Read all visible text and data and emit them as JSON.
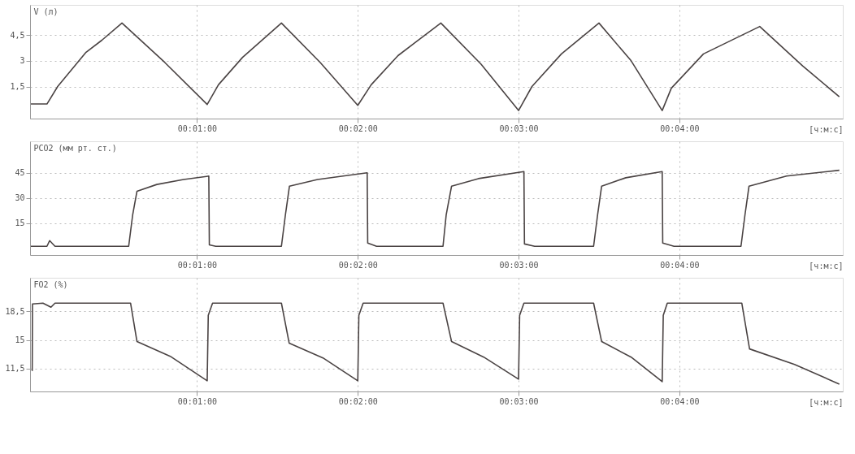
{
  "chart_data": [
    {
      "type": "line",
      "ylabel": "V (л)",
      "xlabel": "[ч:м:с]",
      "color": "#4a4343",
      "grid": true,
      "x": [
        -2,
        4,
        8,
        18.6,
        24.5,
        32,
        48,
        63.8,
        68,
        77,
        91.5,
        106,
        120,
        125,
        135,
        151,
        166,
        180,
        185,
        196,
        210,
        222,
        233.6,
        237,
        249,
        270,
        286,
        299.7
      ],
      "values": [
        0.48,
        0.48,
        1.5,
        3.5,
        4.2,
        5.2,
        2.9,
        0.45,
        1.6,
        3.2,
        5.2,
        2.9,
        0.4,
        1.6,
        3.3,
        5.2,
        2.8,
        0.1,
        1.5,
        3.4,
        5.2,
        3.0,
        0.1,
        1.4,
        3.4,
        5.0,
        2.7,
        0.9
      ],
      "xlim": [
        -2.3,
        301
      ],
      "ylim": [
        -0.37,
        6.26
      ],
      "xticks": [
        {
          "value": 60,
          "label": "00:01:00"
        },
        {
          "value": 120,
          "label": "00:02:00"
        },
        {
          "value": 180,
          "label": "00:03:00"
        },
        {
          "value": 240,
          "label": "00:04:00"
        }
      ],
      "yticks": [
        {
          "value": 1.5,
          "label": "1,5"
        },
        3,
        {
          "value": 4.5,
          "label": "4,5"
        }
      ]
    },
    {
      "type": "line",
      "ylabel": "PCO2 (мм рт. ст.)",
      "xlabel": "[ч:м:с]",
      "color": "#4a4343",
      "grid": true,
      "x": [
        -2,
        4,
        5,
        7,
        34.5,
        36,
        37.6,
        45,
        55,
        64.4,
        64.6,
        67,
        91.5,
        93,
        94.5,
        105,
        123.5,
        123.7,
        127,
        151.8,
        153,
        155,
        165,
        182,
        182.2,
        186,
        208,
        209.5,
        211,
        220,
        233.6,
        233.8,
        238,
        263,
        264.5,
        266,
        280,
        299.7
      ],
      "values": [
        1.1,
        1.1,
        4.5,
        1.1,
        1.1,
        20,
        34,
        38,
        41,
        43,
        2,
        1.1,
        1.1,
        20,
        37,
        41,
        45,
        3,
        1.1,
        1.1,
        20,
        37,
        41.5,
        45.7,
        2.5,
        1.1,
        1.1,
        20,
        37,
        42,
        45.7,
        3,
        1.1,
        1.1,
        20,
        37,
        43,
        46.5
      ],
      "xlim": [
        -2.3,
        301
      ],
      "ylim": [
        -4.1,
        63.75
      ],
      "xticks": [
        {
          "value": 60,
          "label": "00:01:00"
        },
        {
          "value": 120,
          "label": "00:02:00"
        },
        {
          "value": 180,
          "label": "00:03:00"
        },
        {
          "value": 240,
          "label": "00:04:00"
        }
      ],
      "yticks": [
        15,
        30,
        45
      ]
    },
    {
      "type": "line",
      "ylabel": "FO2 (%)",
      "xlabel": "[ч:м:с]",
      "color": "#4a4343",
      "grid": true,
      "x": [
        -1.5,
        -1.4,
        2.5,
        5.5,
        7,
        35.2,
        37.6,
        50,
        63.8,
        64.2,
        65.8,
        91.5,
        94.4,
        107,
        120,
        120.4,
        122,
        151.8,
        155,
        167,
        180,
        180.4,
        182,
        208,
        211,
        222,
        233.6,
        234,
        235.5,
        263.3,
        266.2,
        283,
        299.7
      ],
      "values": [
        11.2,
        19.4,
        19.5,
        19.0,
        19.5,
        19.5,
        14.8,
        13.0,
        10.0,
        18,
        19.5,
        19.5,
        14.6,
        12.8,
        10.0,
        18,
        19.5,
        19.5,
        14.8,
        12.9,
        10.2,
        18,
        19.5,
        19.5,
        14.8,
        12.9,
        9.9,
        18,
        19.5,
        19.5,
        13.9,
        12.0,
        9.6
      ],
      "xlim": [
        -2.3,
        301
      ],
      "ylim": [
        8.7,
        22.6
      ],
      "xticks": [
        {
          "value": 60,
          "label": "00:01:00"
        },
        {
          "value": 120,
          "label": "00:02:00"
        },
        {
          "value": 180,
          "label": "00:03:00"
        },
        {
          "value": 240,
          "label": "00:04:00"
        }
      ],
      "yticks": [
        {
          "value": 11.5,
          "label": "11,5"
        },
        15,
        {
          "value": 18.5,
          "label": "18,5"
        }
      ]
    }
  ]
}
